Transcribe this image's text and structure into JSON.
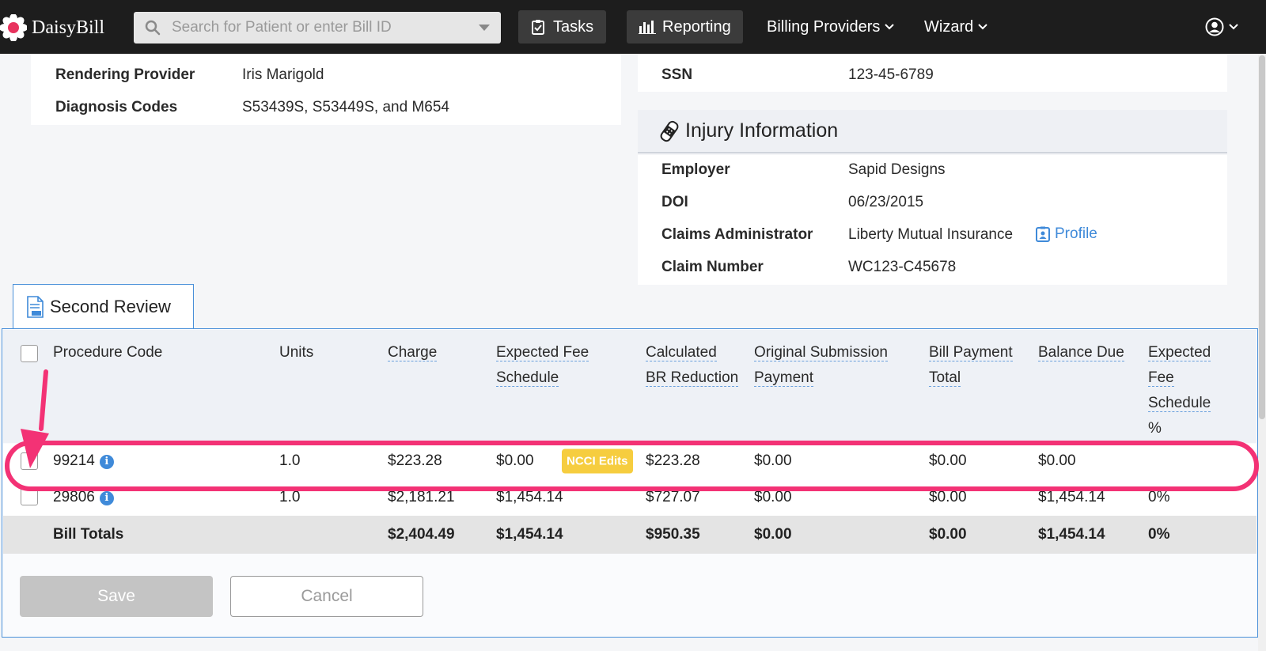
{
  "nav": {
    "brand": "DaisyBill",
    "search_placeholder": "Search for Patient or enter Bill ID",
    "tasks": "Tasks",
    "reporting": "Reporting",
    "billing_providers": "Billing Providers",
    "wizard": "Wizard"
  },
  "bill_info": {
    "rendering_provider_label": "Rendering Provider",
    "rendering_provider_value": "Iris Marigold",
    "diagnosis_codes_label": "Diagnosis Codes",
    "diagnosis_codes_value": "S53439S, S53449S, and M654"
  },
  "patient": {
    "ssn_label": "SSN",
    "ssn_value": "123-45-6789"
  },
  "injury": {
    "title": "Injury Information",
    "employer_label": "Employer",
    "employer_value": "Sapid Designs",
    "doi_label": "DOI",
    "doi_value": "06/23/2015",
    "claims_admin_label": "Claims Administrator",
    "claims_admin_value": "Liberty Mutual Insurance",
    "profile_link": "Profile",
    "claim_number_label": "Claim Number",
    "claim_number_value": "WC123-C45678"
  },
  "second_review": {
    "tab_title": "Second Review",
    "headers": {
      "procedure_code": "Procedure Code",
      "units": "Units",
      "charge": "Charge",
      "expected_fee_1": "Expected Fee",
      "expected_fee_2": "Schedule",
      "calc_br_1": "Calculated",
      "calc_br_2": "BR Reduction",
      "orig_sub_1": "Original Submission",
      "orig_sub_2": "Payment",
      "bill_payment_1": "Bill Payment",
      "bill_payment_2": "Total",
      "balance_due": "Balance Due",
      "efs_pct_1": "Expected",
      "efs_pct_2": "Fee",
      "efs_pct_3": "Schedule",
      "efs_pct_4": "%"
    },
    "rows": [
      {
        "code": "99214",
        "units": "1.0",
        "charge": "$223.28",
        "expected_fee": "$0.00",
        "badge": "NCCI Edits",
        "calc_br": "$223.28",
        "orig_sub": "$0.00",
        "bill_payment": "$0.00",
        "balance_due": "$0.00",
        "efs_pct": ""
      },
      {
        "code": "29806",
        "units": "1.0",
        "charge": "$2,181.21",
        "expected_fee": "$1,454.14",
        "calc_br": "$727.07",
        "orig_sub": "$0.00",
        "bill_payment": "$0.00",
        "balance_due": "$1,454.14",
        "efs_pct": "0%"
      }
    ],
    "totals": {
      "label": "Bill Totals",
      "charge": "$2,404.49",
      "expected_fee": "$1,454.14",
      "calc_br": "$950.35",
      "orig_sub": "$0.00",
      "bill_payment": "$0.00",
      "balance_due": "$1,454.14",
      "efs_pct": "0%"
    },
    "save_label": "Save",
    "cancel_label": "Cancel"
  },
  "colors": {
    "nav_bg": "#1d1d1d",
    "link_blue": "#3f8ad9",
    "badge_yellow": "#f6cd3f",
    "annotation_pink": "#f33275"
  }
}
